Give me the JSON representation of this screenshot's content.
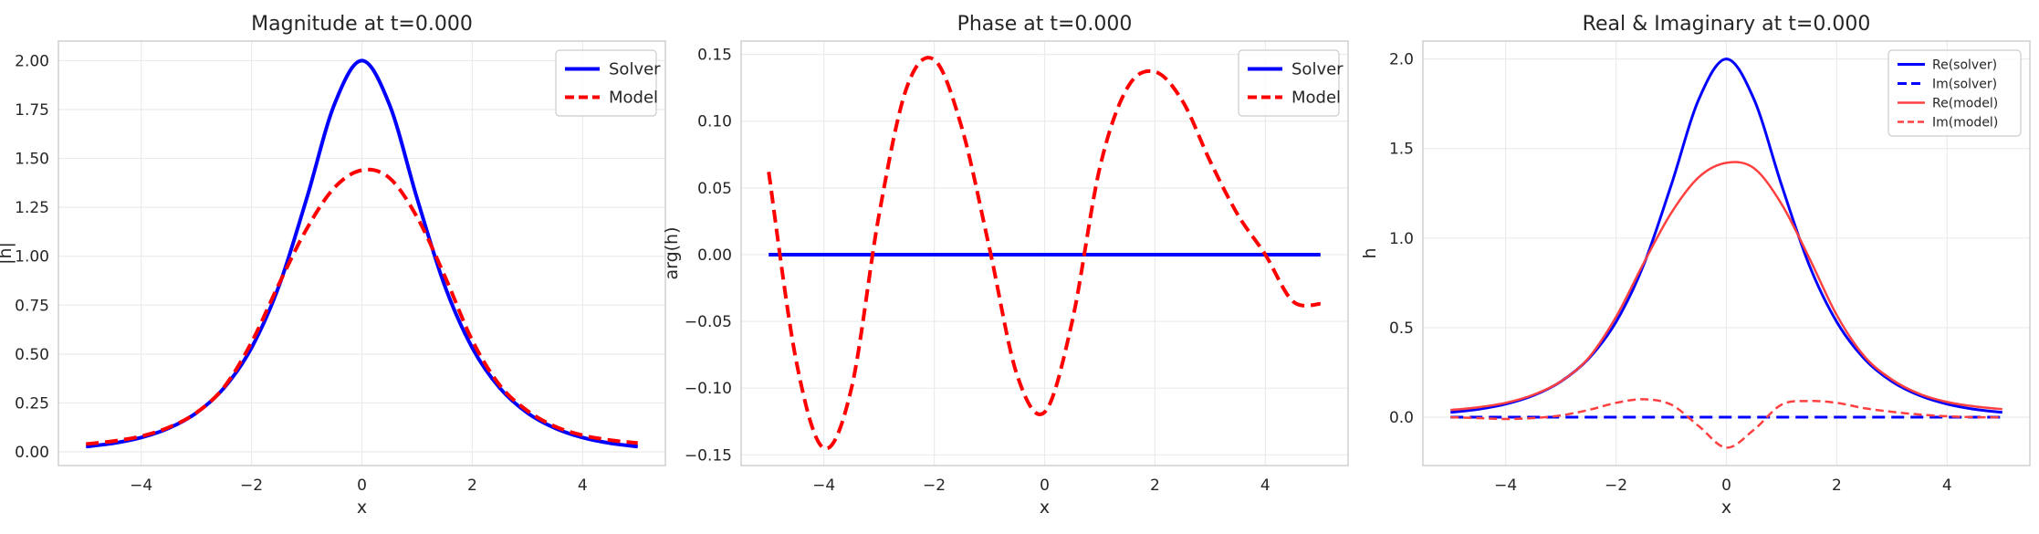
{
  "chart_data": [
    {
      "type": "line",
      "title": "Magnitude at t=0.000",
      "xlabel": "x",
      "ylabel": "|h|",
      "xlim": [
        -5.5,
        5.5
      ],
      "ylim": [
        -0.07,
        2.1
      ],
      "xticks": [
        -4,
        -2,
        0,
        2,
        4
      ],
      "xtick_labels": [
        "−4",
        "−2",
        "0",
        "2",
        "4"
      ],
      "yticks": [
        0.0,
        0.25,
        0.5,
        0.75,
        1.0,
        1.25,
        1.5,
        1.75,
        2.0
      ],
      "ytick_labels": [
        "0.00",
        "0.25",
        "0.50",
        "0.75",
        "1.00",
        "1.25",
        "1.50",
        "1.75",
        "2.00"
      ],
      "grid": true,
      "legend": "top-right",
      "x": [
        -5,
        -4.5,
        -4,
        -3.5,
        -3,
        -2.5,
        -2,
        -1.5,
        -1,
        -0.5,
        0,
        0.5,
        1,
        1.5,
        2,
        2.5,
        3,
        3.5,
        4,
        4.5,
        5
      ],
      "series": [
        {
          "name": "Solver",
          "color": "#0000ff",
          "style": "solid",
          "values": [
            0.027,
            0.044,
            0.073,
            0.121,
            0.199,
            0.326,
            0.532,
            0.85,
            1.296,
            1.775,
            2.0,
            1.775,
            1.296,
            0.85,
            0.532,
            0.326,
            0.199,
            0.121,
            0.073,
            0.044,
            0.027
          ]
        },
        {
          "name": "Model",
          "color": "#ff0000",
          "style": "dashed",
          "values": [
            0.04,
            0.055,
            0.08,
            0.125,
            0.2,
            0.33,
            0.56,
            0.86,
            1.14,
            1.35,
            1.44,
            1.4,
            1.2,
            0.9,
            0.57,
            0.34,
            0.21,
            0.13,
            0.085,
            0.06,
            0.045
          ]
        }
      ]
    },
    {
      "type": "line",
      "title": "Phase at t=0.000",
      "xlabel": "x",
      "ylabel": "arg(h)",
      "xlim": [
        -5.5,
        5.5
      ],
      "ylim": [
        -0.158,
        0.16
      ],
      "xticks": [
        -4,
        -2,
        0,
        2,
        4
      ],
      "xtick_labels": [
        "−4",
        "−2",
        "0",
        "2",
        "4"
      ],
      "yticks": [
        -0.15,
        -0.1,
        -0.05,
        0.0,
        0.05,
        0.1,
        0.15
      ],
      "ytick_labels": [
        "−0.15",
        "−0.10",
        "−0.05",
        "0.00",
        "0.05",
        "0.10",
        "0.15"
      ],
      "grid": true,
      "legend": "top-right",
      "x": [
        -5,
        -4.5,
        -4,
        -3.5,
        -3,
        -2.5,
        -2,
        -1.5,
        -1,
        -0.5,
        0,
        0.5,
        1,
        1.5,
        2,
        2.5,
        3,
        3.5,
        4,
        4.5,
        5
      ],
      "series": [
        {
          "name": "Solver",
          "color": "#0000ff",
          "style": "solid",
          "values": [
            0,
            0,
            0,
            0,
            0,
            0,
            0,
            0,
            0,
            0,
            0,
            0,
            0,
            0,
            0,
            0,
            0,
            0,
            0,
            0,
            0
          ]
        },
        {
          "name": "Model",
          "color": "#ff0000",
          "style": "dashed",
          "values": [
            0.062,
            -0.08,
            -0.145,
            -0.1,
            0.03,
            0.125,
            0.146,
            0.095,
            0.005,
            -0.09,
            -0.118,
            -0.05,
            0.065,
            0.125,
            0.137,
            0.115,
            0.07,
            0.03,
            0.0,
            -0.035,
            -0.037
          ]
        }
      ]
    },
    {
      "type": "line",
      "title": "Real & Imaginary at t=0.000",
      "xlabel": "x",
      "ylabel": "h",
      "xlim": [
        -5.5,
        5.5
      ],
      "ylim": [
        -0.27,
        2.1
      ],
      "xticks": [
        -4,
        -2,
        0,
        2,
        4
      ],
      "xtick_labels": [
        "−4",
        "−2",
        "0",
        "2",
        "4"
      ],
      "yticks": [
        0.0,
        0.5,
        1.0,
        1.5,
        2.0
      ],
      "ytick_labels": [
        "0.0",
        "0.5",
        "1.0",
        "1.5",
        "2.0"
      ],
      "grid": true,
      "legend": "top-right",
      "x": [
        -5,
        -4.5,
        -4,
        -3.5,
        -3,
        -2.5,
        -2,
        -1.5,
        -1,
        -0.5,
        0,
        0.5,
        1,
        1.5,
        2,
        2.5,
        3,
        3.5,
        4,
        4.5,
        5
      ],
      "series": [
        {
          "name": "Re(solver)",
          "color": "#0000ff",
          "style": "solid",
          "values": [
            0.027,
            0.044,
            0.073,
            0.121,
            0.199,
            0.326,
            0.532,
            0.85,
            1.296,
            1.775,
            2.0,
            1.775,
            1.296,
            0.85,
            0.532,
            0.326,
            0.199,
            0.121,
            0.073,
            0.044,
            0.027
          ]
        },
        {
          "name": "Im(solver)",
          "color": "#0000ff",
          "style": "dashed",
          "values": [
            0,
            0,
            0,
            0,
            0,
            0,
            0,
            0,
            0,
            0,
            0,
            0,
            0,
            0,
            0,
            0,
            0,
            0,
            0,
            0,
            0
          ]
        },
        {
          "name": "Re(model)",
          "color": "#ff4040",
          "style": "solid",
          "values": [
            0.04,
            0.055,
            0.08,
            0.125,
            0.2,
            0.33,
            0.56,
            0.86,
            1.14,
            1.34,
            1.42,
            1.39,
            1.19,
            0.89,
            0.57,
            0.34,
            0.21,
            0.13,
            0.085,
            0.06,
            0.045
          ]
        },
        {
          "name": "Im(model)",
          "color": "#ff4040",
          "style": "dashed",
          "values": [
            0.0,
            -0.005,
            -0.01,
            -0.005,
            0.01,
            0.04,
            0.08,
            0.1,
            0.07,
            -0.05,
            -0.17,
            -0.07,
            0.07,
            0.09,
            0.08,
            0.05,
            0.03,
            0.015,
            0.005,
            0.0,
            0.0
          ]
        }
      ]
    }
  ]
}
